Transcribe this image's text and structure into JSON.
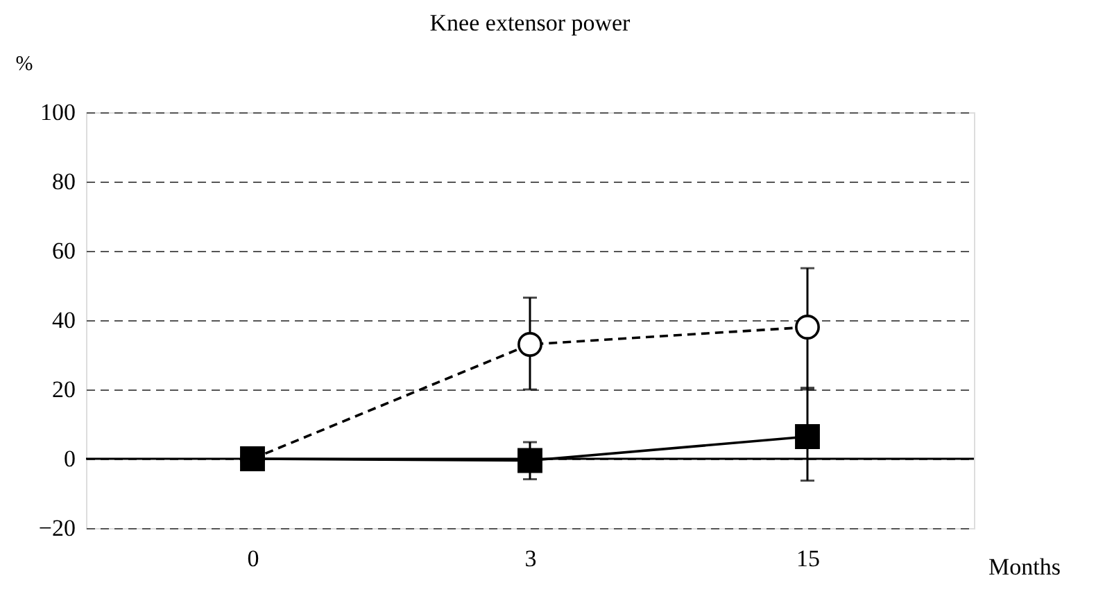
{
  "chart_data": {
    "type": "line",
    "title": "Knee extensor power",
    "xlabel": "Months",
    "ylabel": "%",
    "categories": [
      "0",
      "3",
      "15"
    ],
    "series": [
      {
        "color": "#000000",
        "marker": "square",
        "line_style": "solid",
        "values": [
          0,
          -0.5,
          6.4
        ],
        "errors": [
          null,
          [
            -5.9,
            4.8
          ],
          [
            -6.3,
            20.5
          ]
        ]
      },
      {
        "color": "#000000",
        "marker": "circle",
        "line_style": "dashed",
        "values": [
          0,
          33,
          38
        ],
        "errors": [
          null,
          [
            20,
            46.5
          ],
          [
            20,
            55
          ]
        ]
      }
    ],
    "ylim": [
      -20,
      100
    ],
    "yticks": [
      -20,
      0,
      20,
      40,
      60,
      80,
      100
    ],
    "grid": "y",
    "ref_lines": [
      {
        "axis": "y",
        "value": 0,
        "color": "#000000",
        "line_style": "solid"
      }
    ]
  }
}
